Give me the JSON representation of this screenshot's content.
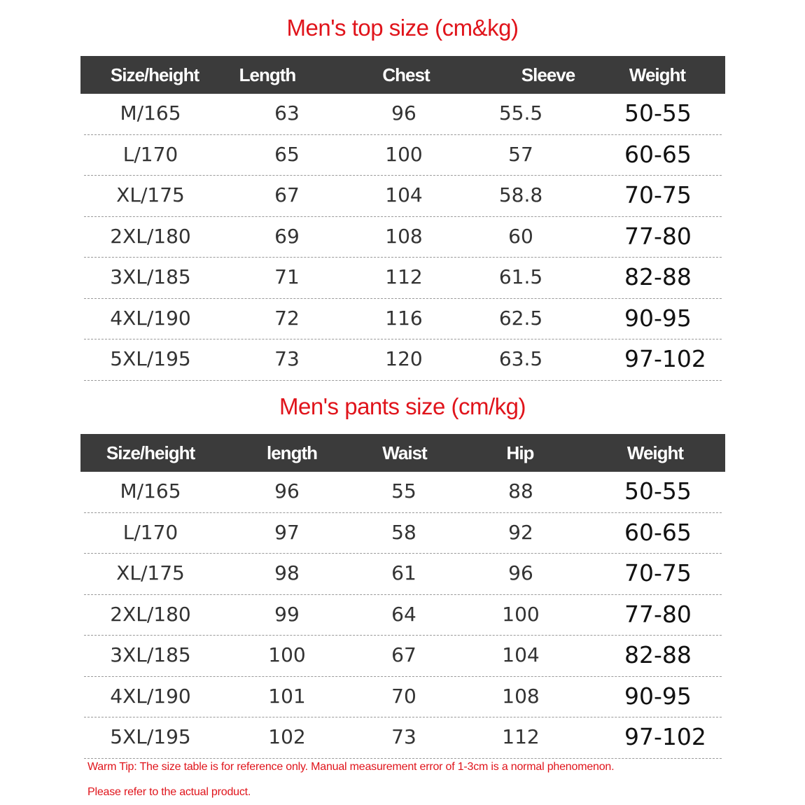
{
  "top": {
    "title": "Men's top size (cm&kg)",
    "headers": [
      "Size/height",
      "Length",
      "Chest",
      "Sleeve",
      "Weight"
    ],
    "rows": [
      [
        "M/165",
        "63",
        "96",
        "55.5",
        "50-55"
      ],
      [
        "L/170",
        "65",
        "100",
        "57",
        "60-65"
      ],
      [
        "XL/175",
        "67",
        "104",
        "58.8",
        "70-75"
      ],
      [
        "2XL/180",
        "69",
        "108",
        "60",
        "77-80"
      ],
      [
        "3XL/185",
        "71",
        "112",
        "61.5",
        "82-88"
      ],
      [
        "4XL/190",
        "72",
        "116",
        "62.5",
        "90-95"
      ],
      [
        "5XL/195",
        "73",
        "120",
        "63.5",
        "97-102"
      ]
    ]
  },
  "pants": {
    "title": "Men's pants size (cm/kg)",
    "headers": [
      "Size/height",
      "length",
      "Waist",
      "Hip",
      "Weight"
    ],
    "rows": [
      [
        "M/165",
        "96",
        "55",
        "88",
        "50-55"
      ],
      [
        "L/170",
        "97",
        "58",
        "92",
        "60-65"
      ],
      [
        "XL/175",
        "98",
        "61",
        "96",
        "70-75"
      ],
      [
        "2XL/180",
        "99",
        "64",
        "100",
        "77-80"
      ],
      [
        "3XL/185",
        "100",
        "67",
        "104",
        "82-88"
      ],
      [
        "4XL/190",
        "101",
        "70",
        "108",
        "90-95"
      ],
      [
        "5XL/195",
        "102",
        "73",
        "112",
        "97-102"
      ]
    ]
  },
  "tip": {
    "line1": "Warm Tip: The size table is for reference only. Manual measurement error of 1-3cm is a normal phenomenon.",
    "line2": "Please refer to the actual product."
  }
}
